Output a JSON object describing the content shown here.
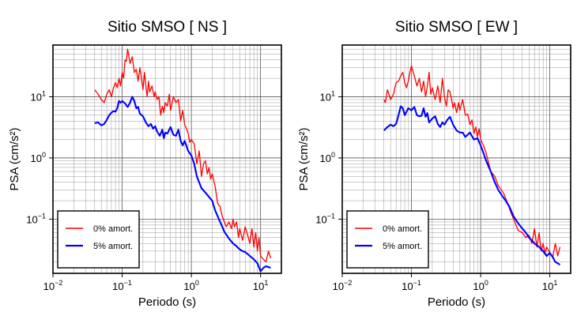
{
  "chart_data": [
    {
      "type": "line",
      "title": "Sitio SMSO [ NS ]",
      "xlabel": "Periodo (s)",
      "ylabel": "PSA (cm/s²)",
      "xscale": "log",
      "yscale": "log",
      "xlim": [
        0.01,
        20
      ],
      "ylim": [
        0.013,
        70
      ],
      "xticks": [
        {
          "value": 0.01,
          "base": "10",
          "exp": "−2"
        },
        {
          "value": 0.1,
          "base": "10",
          "exp": "−1"
        },
        {
          "value": 1,
          "base": "10",
          "exp": "0"
        },
        {
          "value": 10,
          "base": "10",
          "exp": "1"
        }
      ],
      "yticks": [
        {
          "value": 0.1,
          "base": "10",
          "exp": "−1"
        },
        {
          "value": 1,
          "base": "10",
          "exp": "0"
        },
        {
          "value": 10,
          "base": "10",
          "exp": "1"
        }
      ],
      "grid": true,
      "legend_position": "bottom-left",
      "series": [
        {
          "name": "0% amort.",
          "color": "#ff0000",
          "x": [
            0.04,
            0.045,
            0.05,
            0.055,
            0.06,
            0.065,
            0.07,
            0.075,
            0.08,
            0.085,
            0.09,
            0.095,
            0.1,
            0.105,
            0.11,
            0.115,
            0.12,
            0.13,
            0.14,
            0.15,
            0.16,
            0.17,
            0.18,
            0.19,
            0.2,
            0.21,
            0.22,
            0.23,
            0.24,
            0.25,
            0.27,
            0.29,
            0.3,
            0.32,
            0.34,
            0.36,
            0.38,
            0.4,
            0.42,
            0.45,
            0.48,
            0.5,
            0.55,
            0.6,
            0.65,
            0.7,
            0.75,
            0.8,
            0.85,
            0.9,
            0.95,
            1.0,
            1.1,
            1.2,
            1.3,
            1.4,
            1.5,
            1.6,
            1.7,
            1.8,
            1.9,
            2.0,
            2.2,
            2.4,
            2.6,
            2.8,
            3.0,
            3.2,
            3.5,
            3.8,
            4.0,
            4.2,
            4.5,
            4.8,
            5.0,
            5.5,
            6.0,
            6.5,
            7.0,
            7.5,
            8.0,
            8.5,
            9.0,
            9.5,
            10,
            11,
            12,
            13,
            14
          ],
          "y": [
            13,
            11,
            9,
            8,
            11,
            13,
            10,
            14,
            17,
            14,
            20,
            15,
            25,
            20,
            40,
            38,
            60,
            35,
            45,
            25,
            28,
            18,
            30,
            20,
            13,
            25,
            15,
            10,
            18,
            12,
            15,
            10,
            12,
            9,
            10,
            5,
            7,
            5.5,
            8,
            7,
            11,
            6,
            10,
            8,
            9,
            4,
            6,
            3.5,
            3,
            2.5,
            1.8,
            2.0,
            1.7,
            0.8,
            1.3,
            0.5,
            0.8,
            0.9,
            0.55,
            0.7,
            0.45,
            0.55,
            0.35,
            0.18,
            0.16,
            0.11,
            0.09,
            0.075,
            0.09,
            0.07,
            0.1,
            0.075,
            0.09,
            0.05,
            0.07,
            0.045,
            0.075,
            0.055,
            0.04,
            0.07,
            0.035,
            0.06,
            0.03,
            0.05,
            0.025,
            0.022,
            0.02,
            0.03,
            0.023
          ]
        },
        {
          "name": "5% amort.",
          "color": "#0000ff",
          "x": [
            0.04,
            0.045,
            0.05,
            0.055,
            0.06,
            0.065,
            0.07,
            0.075,
            0.08,
            0.085,
            0.09,
            0.095,
            0.1,
            0.11,
            0.12,
            0.13,
            0.14,
            0.15,
            0.16,
            0.17,
            0.18,
            0.2,
            0.22,
            0.24,
            0.26,
            0.28,
            0.3,
            0.32,
            0.35,
            0.38,
            0.4,
            0.42,
            0.45,
            0.5,
            0.55,
            0.6,
            0.65,
            0.7,
            0.75,
            0.8,
            0.9,
            1.0,
            1.1,
            1.2,
            1.4,
            1.6,
            1.8,
            2.0,
            2.2,
            2.5,
            2.8,
            3.0,
            3.5,
            4.0,
            4.5,
            5.0,
            5.5,
            6.0,
            7.0,
            8.0,
            9.0,
            10,
            11,
            12,
            14
          ],
          "y": [
            3.7,
            3.8,
            3.4,
            3.6,
            4.2,
            5.0,
            5.5,
            5.8,
            5.7,
            6.5,
            8.5,
            8.0,
            8.5,
            7.8,
            6.8,
            8.0,
            10,
            8.5,
            6.5,
            6.8,
            5.3,
            4.8,
            3.8,
            3.3,
            3.6,
            3.0,
            3.3,
            2.7,
            2.3,
            2.9,
            2.1,
            2.6,
            2.5,
            3.2,
            2.4,
            2.3,
            2.9,
            1.9,
            1.6,
            1.9,
            1.3,
            1.1,
            0.8,
            0.5,
            0.32,
            0.27,
            0.23,
            0.2,
            0.14,
            0.1,
            0.075,
            0.062,
            0.048,
            0.04,
            0.036,
            0.032,
            0.03,
            0.029,
            0.025,
            0.022,
            0.019,
            0.014,
            0.016,
            0.017,
            0.016
          ]
        }
      ]
    },
    {
      "type": "line",
      "title": "Sitio SMSO [ EW ]",
      "xlabel": "Periodo (s)",
      "ylabel": "PSA (cm/s²)",
      "xscale": "log",
      "yscale": "log",
      "xlim": [
        0.01,
        20
      ],
      "ylim": [
        0.013,
        70
      ],
      "xticks": [
        {
          "value": 0.01,
          "base": "10",
          "exp": "−2"
        },
        {
          "value": 0.1,
          "base": "10",
          "exp": "−1"
        },
        {
          "value": 1,
          "base": "10",
          "exp": "0"
        },
        {
          "value": 10,
          "base": "10",
          "exp": "1"
        }
      ],
      "yticks": [
        {
          "value": 0.1,
          "base": "10",
          "exp": "−1"
        },
        {
          "value": 1,
          "base": "10",
          "exp": "0"
        },
        {
          "value": 10,
          "base": "10",
          "exp": "1"
        }
      ],
      "grid": true,
      "legend_position": "bottom-left",
      "series": [
        {
          "name": "0% amort.",
          "color": "#ff0000",
          "x": [
            0.04,
            0.042,
            0.045,
            0.05,
            0.055,
            0.06,
            0.065,
            0.07,
            0.075,
            0.08,
            0.085,
            0.09,
            0.095,
            0.1,
            0.11,
            0.12,
            0.13,
            0.14,
            0.15,
            0.16,
            0.17,
            0.18,
            0.19,
            0.2,
            0.22,
            0.24,
            0.26,
            0.28,
            0.3,
            0.32,
            0.34,
            0.36,
            0.38,
            0.4,
            0.42,
            0.45,
            0.48,
            0.5,
            0.55,
            0.6,
            0.65,
            0.7,
            0.75,
            0.8,
            0.85,
            0.9,
            0.95,
            1.0,
            1.1,
            1.2,
            1.4,
            1.6,
            1.8,
            2.0,
            2.2,
            2.5,
            2.8,
            3.0,
            3.5,
            4.0,
            4.5,
            5.0,
            5.5,
            6.0,
            6.5,
            7.0,
            7.5,
            8.0,
            8.5,
            9.0,
            10,
            11,
            12,
            13,
            14
          ],
          "y": [
            9,
            8,
            13,
            9,
            11,
            17,
            18,
            22,
            25,
            17,
            14,
            18,
            25,
            32,
            22,
            15,
            20,
            12,
            18,
            10,
            15,
            25,
            11,
            14,
            9,
            15,
            8,
            20,
            10,
            7,
            13,
            12,
            9,
            6.5,
            8,
            5.5,
            8,
            6,
            9,
            5.0,
            5.2,
            3.5,
            4.2,
            2.5,
            3.2,
            2.2,
            3.0,
            2.0,
            1.6,
            1.2,
            0.6,
            0.5,
            0.35,
            0.3,
            0.25,
            0.17,
            0.12,
            0.1,
            0.065,
            0.06,
            0.05,
            0.055,
            0.04,
            0.07,
            0.035,
            0.06,
            0.03,
            0.04,
            0.028,
            0.035,
            0.028,
            0.024,
            0.04,
            0.025,
            0.035
          ]
        },
        {
          "name": "5% amort.",
          "color": "#0000ff",
          "x": [
            0.04,
            0.045,
            0.05,
            0.055,
            0.06,
            0.065,
            0.07,
            0.075,
            0.08,
            0.09,
            0.1,
            0.11,
            0.12,
            0.13,
            0.14,
            0.15,
            0.16,
            0.17,
            0.18,
            0.2,
            0.22,
            0.24,
            0.26,
            0.28,
            0.3,
            0.33,
            0.36,
            0.4,
            0.45,
            0.5,
            0.55,
            0.6,
            0.7,
            0.8,
            0.9,
            1.0,
            1.1,
            1.2,
            1.4,
            1.6,
            1.8,
            2.0,
            2.3,
            2.6,
            3.0,
            3.5,
            4.0,
            4.5,
            5.0,
            5.5,
            6.0,
            7.0,
            8.0,
            9.0,
            10,
            11,
            12,
            14
          ],
          "y": [
            2.8,
            3.2,
            3.5,
            3.3,
            3.6,
            5.0,
            7.0,
            6.5,
            5.0,
            6.5,
            6.0,
            6.8,
            5.0,
            4.8,
            4.9,
            6.5,
            4.7,
            5.4,
            3.8,
            4.4,
            4.8,
            3.6,
            3.2,
            3.8,
            3.5,
            4.2,
            4.7,
            3.5,
            2.8,
            2.6,
            2.6,
            2.2,
            2.6,
            2.0,
            2.1,
            1.6,
            1.2,
            0.9,
            0.6,
            0.4,
            0.3,
            0.25,
            0.2,
            0.16,
            0.11,
            0.085,
            0.07,
            0.06,
            0.05,
            0.045,
            0.04,
            0.035,
            0.03,
            0.025,
            0.028,
            0.024,
            0.02,
            0.018
          ]
        }
      ]
    }
  ]
}
